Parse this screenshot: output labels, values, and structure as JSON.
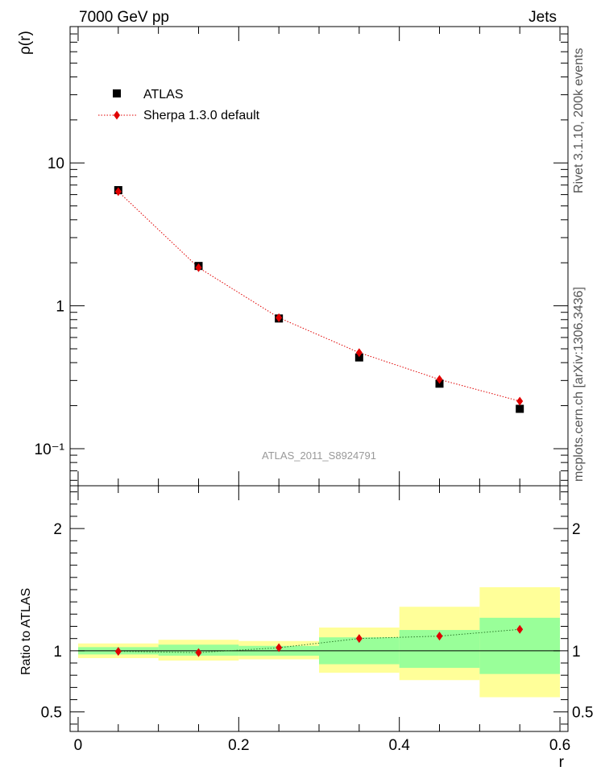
{
  "header": {
    "left": "7000 GeV pp",
    "right": "Jets"
  },
  "side_labels": {
    "rivet": "Rivet 3.1.10,  200k events",
    "mcplots": "mcplots.cern.ch [arXiv:1306.3436]"
  },
  "watermark": "ATLAS_2011_S8924791",
  "chart_data": [
    {
      "type": "scatter",
      "panel": "main",
      "ylabel": "ρ(r)",
      "yscale": "log",
      "xlim": [
        -0.01,
        0.61
      ],
      "ylim": [
        0.055,
        90
      ],
      "x_ticks": [
        0,
        0.2,
        0.4,
        0.6
      ],
      "y_tick_values": [
        0.1,
        1,
        10
      ],
      "y_tick_labels": [
        "10⁻¹",
        "1",
        "10"
      ],
      "legend_position": "top-left",
      "series": [
        {
          "name": "ATLAS",
          "color": "#000000",
          "marker": "square",
          "x": [
            0.05,
            0.15,
            0.25,
            0.35,
            0.45,
            0.55
          ],
          "y": [
            6.45,
            1.9,
            0.815,
            0.435,
            0.285,
            0.19
          ]
        },
        {
          "name": "Sherpa 1.3.0 default",
          "color": "#e00000",
          "marker": "diamond",
          "line": "dotted",
          "x": [
            0.05,
            0.15,
            0.25,
            0.35,
            0.45,
            0.55
          ],
          "y": [
            6.3,
            1.85,
            0.825,
            0.47,
            0.305,
            0.215
          ]
        }
      ]
    },
    {
      "type": "scatter",
      "panel": "ratio",
      "xlabel": "r",
      "ylabel": "Ratio to ATLAS",
      "xlim": [
        -0.01,
        0.61
      ],
      "ylim": [
        0.34,
        2.35
      ],
      "x_ticks": [
        0,
        0.2,
        0.4,
        0.6
      ],
      "x_tick_labels": [
        "0",
        "0.2",
        "0.4",
        "0.6"
      ],
      "y_ticks": [
        0.5,
        1,
        2
      ],
      "y_tick_labels": [
        "0.5",
        "1",
        "2"
      ],
      "bands": [
        {
          "x0": 0.0,
          "x1": 0.1,
          "inner": [
            0.97,
            1.03
          ],
          "outer": [
            0.94,
            1.06
          ]
        },
        {
          "x0": 0.1,
          "x1": 0.2,
          "inner": [
            0.96,
            1.05
          ],
          "outer": [
            0.92,
            1.09
          ]
        },
        {
          "x0": 0.2,
          "x1": 0.3,
          "inner": [
            0.96,
            1.04
          ],
          "outer": [
            0.93,
            1.08
          ]
        },
        {
          "x0": 0.3,
          "x1": 0.4,
          "inner": [
            0.89,
            1.11
          ],
          "outer": [
            0.82,
            1.19
          ]
        },
        {
          "x0": 0.4,
          "x1": 0.5,
          "inner": [
            0.86,
            1.17
          ],
          "outer": [
            0.76,
            1.36
          ]
        },
        {
          "x0": 0.5,
          "x1": 0.6,
          "inner": [
            0.81,
            1.27
          ],
          "outer": [
            0.62,
            1.52
          ]
        }
      ],
      "inner_band_color": "#99ff99",
      "outer_band_color": "#ffff99",
      "series": [
        {
          "name": "Sherpa 1.3.0 default",
          "color": "#e00000",
          "marker": "diamond",
          "line": "dotted",
          "x": [
            0.05,
            0.15,
            0.25,
            0.35,
            0.45,
            0.55
          ],
          "y": [
            0.995,
            0.985,
            1.025,
            1.1,
            1.12,
            1.175
          ]
        }
      ]
    }
  ]
}
